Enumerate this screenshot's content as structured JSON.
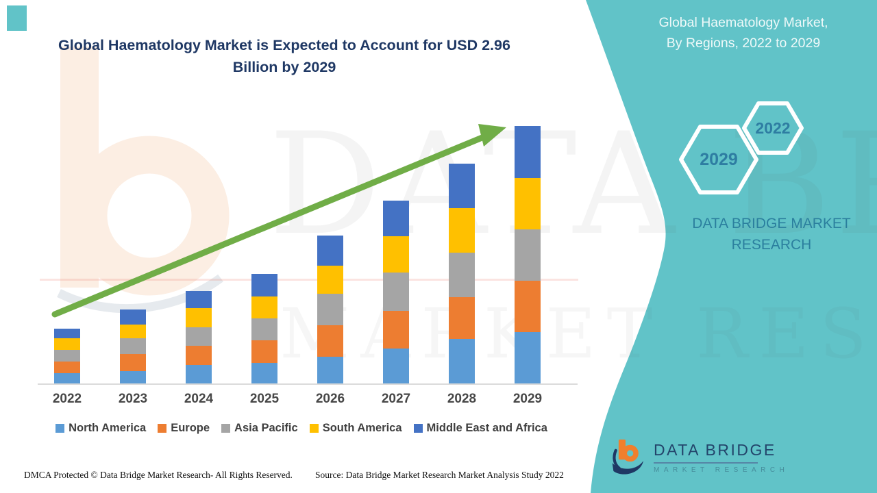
{
  "header": {
    "chart_title": "Global Haematology Market is Expected to Account for USD 2.96 Billion by 2029"
  },
  "side_panel": {
    "title_line1": "Global Haematology Market,",
    "title_line2": "By Regions, 2022 to 2029",
    "hexagon_large_label": "2029",
    "hexagon_small_label": "2022",
    "brand_text": "DATA BRIDGE MARKET RESEARCH",
    "panel_color": "#61c3c8"
  },
  "chart_data": {
    "type": "bar",
    "stacked": true,
    "title": "Global Haematology Market is Expected to Account for USD 2.96 Billion by 2029",
    "unit": "USD billion",
    "categories": [
      "2022",
      "2023",
      "2024",
      "2025",
      "2026",
      "2027",
      "2028",
      "2029"
    ],
    "series": [
      {
        "name": "North America",
        "color": "#5B9BD5",
        "values": [
          0.12,
          0.14,
          0.21,
          0.24,
          0.31,
          0.4,
          0.51,
          0.59
        ]
      },
      {
        "name": "Europe",
        "color": "#ED7D31",
        "values": [
          0.13,
          0.2,
          0.22,
          0.26,
          0.36,
          0.43,
          0.48,
          0.59
        ]
      },
      {
        "name": "Asia Pacific",
        "color": "#A5A5A5",
        "values": [
          0.13,
          0.18,
          0.21,
          0.25,
          0.36,
          0.44,
          0.51,
          0.59
        ]
      },
      {
        "name": "South America",
        "color": "#FFC000",
        "values": [
          0.13,
          0.16,
          0.22,
          0.25,
          0.32,
          0.42,
          0.51,
          0.59
        ]
      },
      {
        "name": "Middle East and Africa",
        "color": "#4472C4",
        "values": [
          0.11,
          0.17,
          0.2,
          0.26,
          0.35,
          0.41,
          0.51,
          0.6
        ]
      }
    ],
    "totals": [
      0.62,
      0.85,
      1.06,
      1.26,
      1.7,
      2.1,
      2.52,
      2.96
    ],
    "highlight_value_2029": "USD 2.96 Billion",
    "ylim": [
      0,
      3.0
    ],
    "gridlines": false,
    "axis_labels_visible": false,
    "legend_position": "bottom",
    "trend_arrow": {
      "present": true,
      "color": "#70AD47",
      "direction": "up-right"
    }
  },
  "watermarks": {
    "line1": "DATA BRIDGE",
    "line2": "MARKET RESEARCH"
  },
  "logo": {
    "title": "DATA BRIDGE",
    "subtitle": "MARKET RESEARCH"
  },
  "footer": {
    "left": "DMCA Protected © Data Bridge  Market Research-  All Rights Reserved.",
    "right": "Source: Data Bridge  Market Research  Market Analysis Study 2022"
  }
}
